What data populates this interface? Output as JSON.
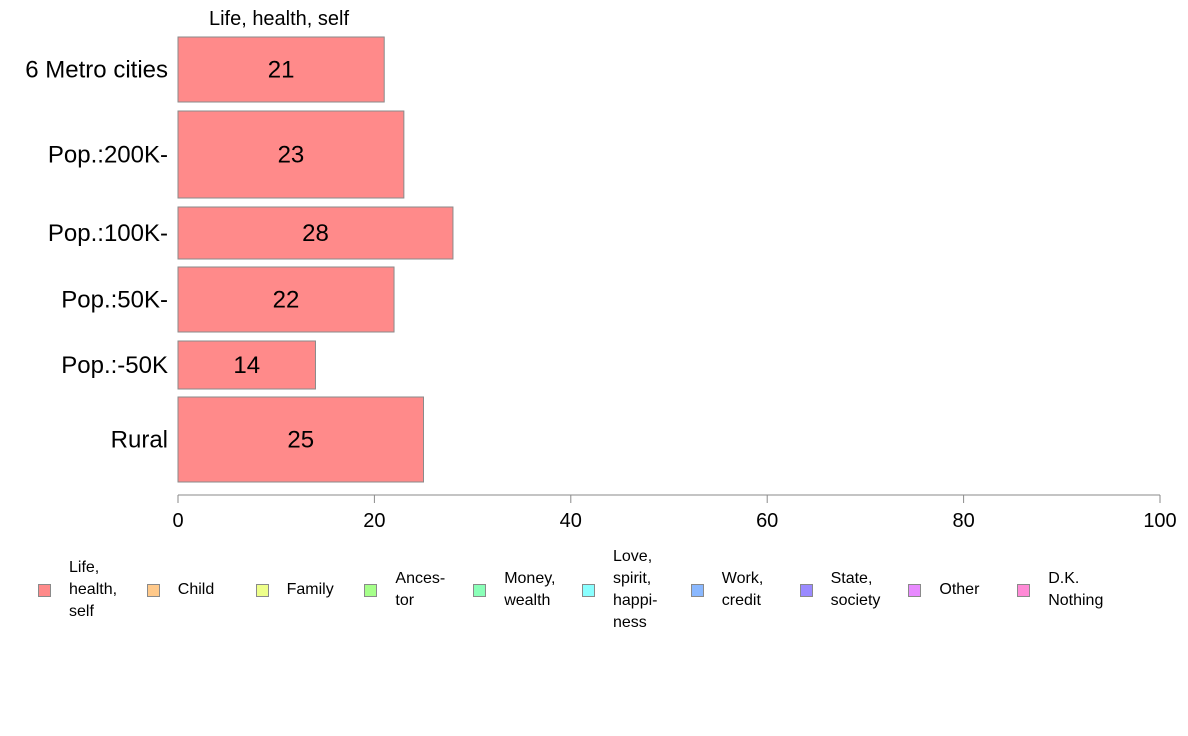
{
  "chart_data": {
    "type": "bar",
    "orientation": "horizontal",
    "title": "Life, health, self",
    "categories": [
      "6 Metro cities",
      "Pop.:200K-",
      "Pop.:100K-",
      "Pop.:50K-",
      "Pop.:-50K",
      "Rural"
    ],
    "series": [
      {
        "name": "Life, health, self",
        "values": [
          21,
          23,
          28,
          22,
          14,
          25
        ],
        "color": "#ff8a8a"
      }
    ],
    "data_labels": [
      "21",
      "23",
      "28",
      "22",
      "14",
      "25"
    ],
    "xlim": [
      0,
      100
    ],
    "x_ticks": [
      0,
      20,
      40,
      60,
      80,
      100
    ],
    "x_tick_labels": [
      "0",
      "20",
      "40",
      "60",
      "80",
      "100"
    ],
    "xlabel": "",
    "ylabel": "",
    "grid": false,
    "legend_position": "bottom"
  },
  "legend": [
    {
      "lines": [
        "Life,",
        "health,",
        "self"
      ],
      "color": "#ff8a8a"
    },
    {
      "lines": [
        "Child"
      ],
      "color": "#ffc98a"
    },
    {
      "lines": [
        "Family"
      ],
      "color": "#eeff8a"
    },
    {
      "lines": [
        "Ances-",
        "tor"
      ],
      "color": "#a6ff8a"
    },
    {
      "lines": [
        "Money,",
        "wealth"
      ],
      "color": "#8affb8"
    },
    {
      "lines": [
        "Love,",
        "spirit,",
        "happi-",
        "ness"
      ],
      "color": "#8affff"
    },
    {
      "lines": [
        "Work,",
        "credit"
      ],
      "color": "#8ab8ff"
    },
    {
      "lines": [
        "State,",
        "society"
      ],
      "color": "#9a8aff"
    },
    {
      "lines": [
        "Other"
      ],
      "color": "#e88aff"
    },
    {
      "lines": [
        "D.K.",
        "Nothing"
      ],
      "color": "#ff8ad6"
    }
  ]
}
